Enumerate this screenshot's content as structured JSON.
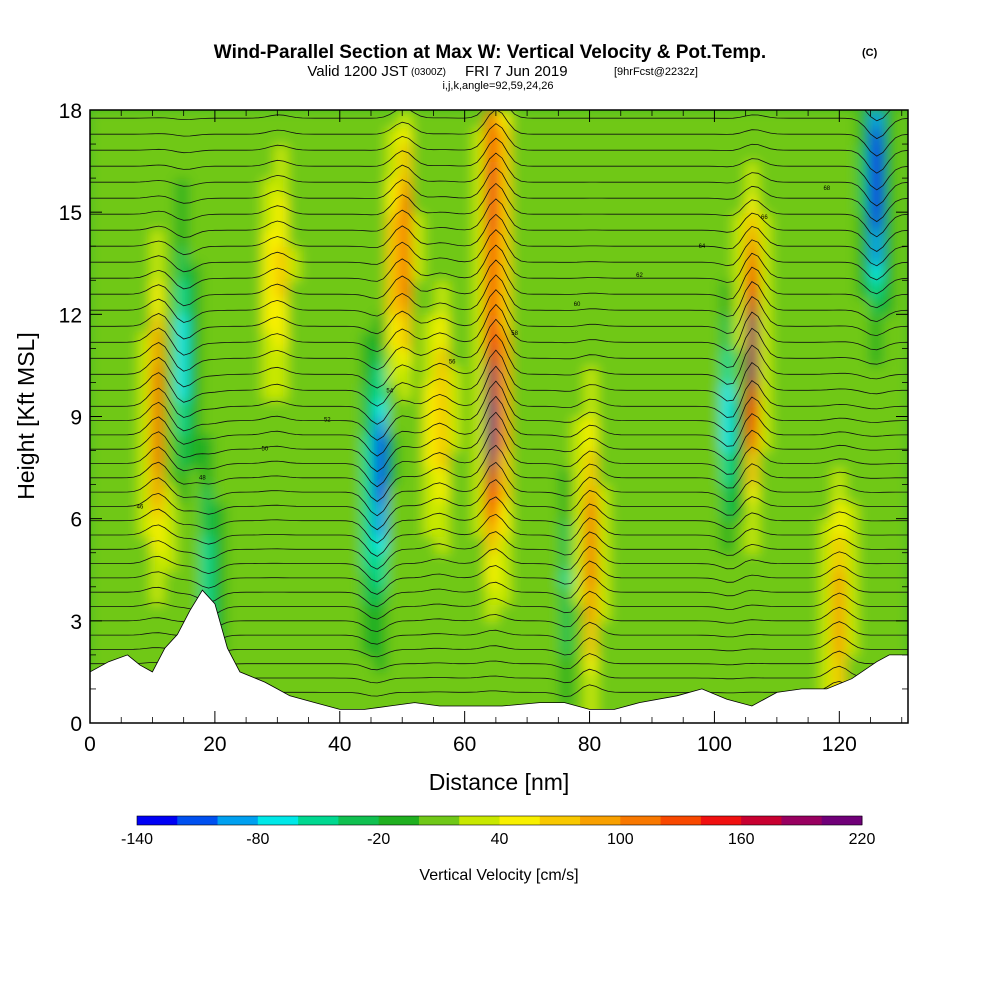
{
  "chart_data": {
    "type": "heatmap",
    "title": "Wind-Parallel Section at Max W: Vertical Velocity & Pot.Temp.",
    "title_mark": "(C)",
    "subtitle": {
      "valid_label": "Valid 1200 JST",
      "utc": "(0300Z)",
      "date": "FRI 7 Jun 2019",
      "forecast": "[9hrFcst@2232z]"
    },
    "grid_info": "i,j,k,angle=92,59,24,26",
    "xlabel": "Distance [nm]",
    "ylabel": "Height [Kft MSL]",
    "xlim": [
      0,
      131
    ],
    "ylim": [
      0,
      18
    ],
    "x_ticks": [
      "0",
      "20",
      "40",
      "60",
      "80",
      "100",
      "120"
    ],
    "y_ticks": [
      "0",
      "3",
      "6",
      "9",
      "12",
      "15",
      "18"
    ],
    "colorbar": {
      "label": "Vertical Velocity [cm/s]",
      "min": -140,
      "max": 220,
      "step": 20,
      "tick_labels": [
        "-140",
        "-80",
        "-20",
        "40",
        "100",
        "160",
        "220"
      ],
      "colors": [
        "#0000f5",
        "#0050f0",
        "#00a0f0",
        "#00e8e8",
        "#00d890",
        "#10c050",
        "#20b020",
        "#70c818",
        "#c8e800",
        "#f8f000",
        "#f8c800",
        "#f8a000",
        "#f87800",
        "#f84800",
        "#f01010",
        "#c80030",
        "#980060",
        "#700078"
      ]
    },
    "updrafts": [
      {
        "x": 11,
        "z": 9,
        "w": 110
      },
      {
        "x": 30,
        "z": 13,
        "w": 60
      },
      {
        "x": 50,
        "z": 14,
        "w": 120
      },
      {
        "x": 56,
        "z": 9,
        "w": 70
      },
      {
        "x": 65,
        "z": 9,
        "w": 220
      },
      {
        "x": 65,
        "z": 16,
        "w": 150
      },
      {
        "x": 80,
        "z": 5,
        "w": 110
      },
      {
        "x": 106,
        "z": 11,
        "w": 190
      },
      {
        "x": 120,
        "z": 3,
        "w": 80
      }
    ],
    "downdrafts": [
      {
        "x": 15,
        "z": 11,
        "w": -80
      },
      {
        "x": 19,
        "z": 4,
        "w": -60
      },
      {
        "x": 46,
        "z": 7,
        "w": -140
      },
      {
        "x": 77,
        "z": 4,
        "w": -50
      },
      {
        "x": 103,
        "z": 9,
        "w": -90
      },
      {
        "x": 126,
        "z": 16,
        "w": -140
      }
    ],
    "theta_contour_labels": [
      "46",
      "48",
      "50",
      "52",
      "54",
      "56",
      "58",
      "60",
      "62",
      "64",
      "66",
      "68"
    ],
    "terrain_kft": [
      [
        0,
        1.5
      ],
      [
        3,
        1.8
      ],
      [
        6,
        2.0
      ],
      [
        8,
        1.7
      ],
      [
        10,
        1.5
      ],
      [
        12,
        2.2
      ],
      [
        14,
        2.6
      ],
      [
        16,
        3.3
      ],
      [
        18,
        3.9
      ],
      [
        20,
        3.5
      ],
      [
        22,
        2.2
      ],
      [
        24,
        1.5
      ],
      [
        28,
        1.2
      ],
      [
        30,
        1.0
      ],
      [
        32,
        0.8
      ],
      [
        36,
        0.6
      ],
      [
        40,
        0.4
      ],
      [
        44,
        0.4
      ],
      [
        48,
        0.5
      ],
      [
        52,
        0.6
      ],
      [
        56,
        0.5
      ],
      [
        60,
        0.5
      ],
      [
        66,
        0.5
      ],
      [
        72,
        0.6
      ],
      [
        76,
        0.6
      ],
      [
        80,
        0.4
      ],
      [
        84,
        0.4
      ],
      [
        88,
        0.6
      ],
      [
        94,
        0.8
      ],
      [
        98,
        1.0
      ],
      [
        102,
        0.7
      ],
      [
        106,
        0.5
      ],
      [
        110,
        0.9
      ],
      [
        114,
        1.0
      ],
      [
        118,
        1.0
      ],
      [
        122,
        1.3
      ],
      [
        126,
        1.8
      ],
      [
        128,
        2.0
      ],
      [
        131,
        2.0
      ]
    ]
  }
}
